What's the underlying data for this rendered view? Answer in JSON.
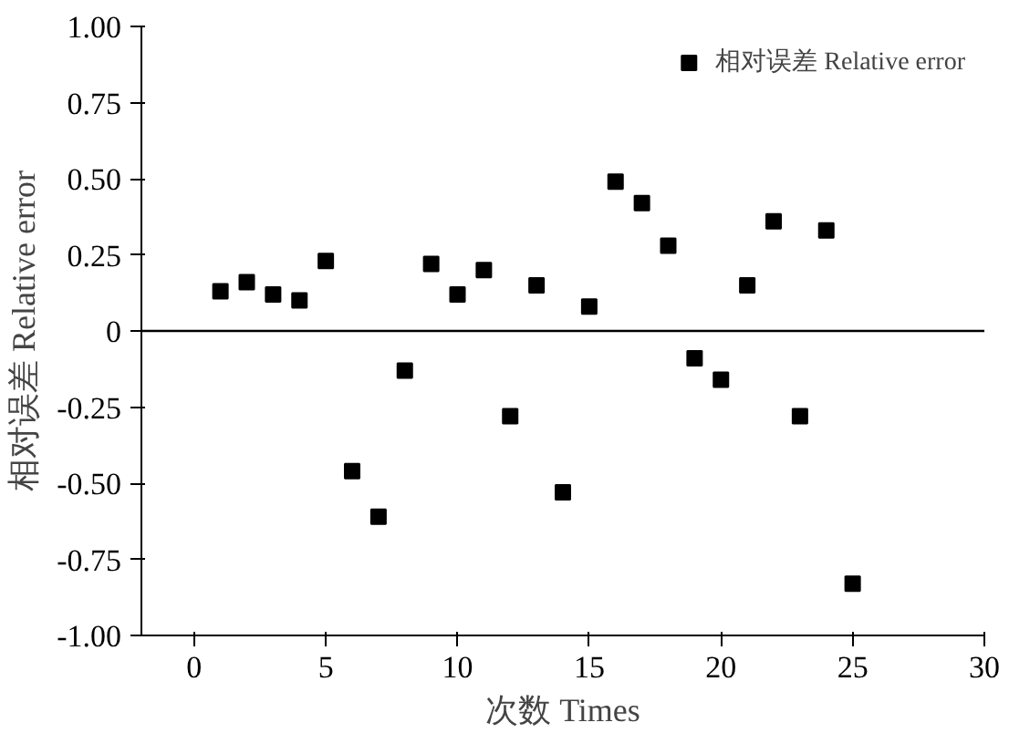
{
  "chart_data": {
    "type": "scatter",
    "xlabel": "次数 Times",
    "ylabel": "相对误差 Relative error",
    "x": [
      1,
      2,
      3,
      4,
      5,
      6,
      7,
      8,
      9,
      10,
      11,
      12,
      13,
      14,
      15,
      16,
      17,
      18,
      19,
      20,
      21,
      22,
      23,
      24,
      25
    ],
    "series": [
      {
        "name": "相对误差 Relative error",
        "color": "#000000",
        "values": [
          0.13,
          0.16,
          0.12,
          0.1,
          0.23,
          -0.46,
          -0.61,
          -0.13,
          0.22,
          0.12,
          0.2,
          -0.28,
          0.15,
          -0.53,
          0.08,
          0.49,
          0.42,
          0.28,
          -0.09,
          -0.16,
          0.15,
          0.36,
          -0.28,
          0.33,
          -0.83
        ]
      }
    ],
    "xlim": [
      -2,
      30
    ],
    "xticks": [
      0,
      5,
      10,
      15,
      20,
      25,
      30
    ],
    "ylim": [
      -1,
      1
    ],
    "yticks": [
      {
        "value": -1,
        "label": "-1.00"
      },
      {
        "value": -0.75,
        "label": "-0.75"
      },
      {
        "value": -0.5,
        "label": "-0.50"
      },
      {
        "value": -0.25,
        "label": "-0.25"
      },
      0,
      {
        "value": 0.25,
        "label": "0.25"
      },
      {
        "value": 0.5,
        "label": "0.50"
      },
      {
        "value": 0.75,
        "label": "0.75"
      },
      {
        "value": 1,
        "label": "1.00"
      }
    ],
    "ref_lines": [
      {
        "axis": "y",
        "value": 0,
        "color": "#000000"
      }
    ],
    "marker": "square",
    "legend": "top right",
    "grid": false
  }
}
